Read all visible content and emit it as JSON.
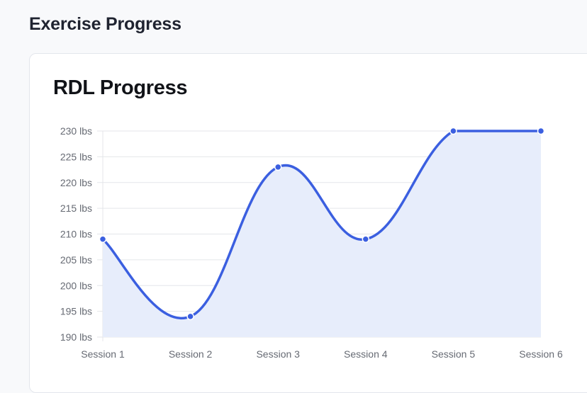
{
  "page": {
    "title": "Exercise Progress"
  },
  "card": {
    "title": "RDL Progress"
  },
  "chart_data": {
    "type": "line",
    "categories": [
      "Session 1",
      "Session 2",
      "Session 3",
      "Session 4",
      "Session 5",
      "Session 6"
    ],
    "series": [
      {
        "values": [
          209,
          194,
          223,
          209,
          230,
          230
        ]
      }
    ],
    "ylim": [
      190,
      230
    ],
    "yticks": [
      190,
      195,
      200,
      205,
      210,
      215,
      220,
      225,
      230
    ],
    "ytick_suffix": " lbs",
    "grid": true,
    "fill_area": true,
    "line_color": "#3b5fe0",
    "fill_color": "#e7edfb",
    "grid_color": "#e4e6ea"
  }
}
